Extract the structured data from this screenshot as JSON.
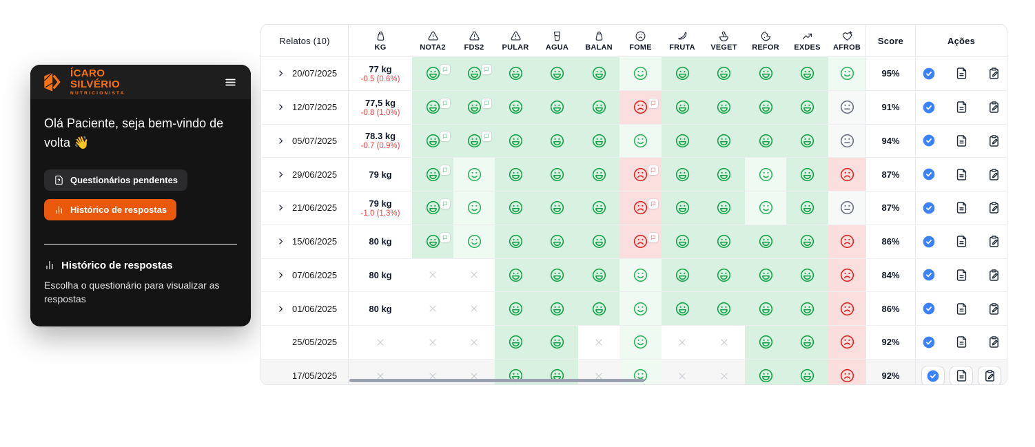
{
  "sidebar": {
    "logo": {
      "line1": "ÍCARO",
      "line2": "SILVÉRIO",
      "line3": "NUTRICIONISTA"
    },
    "greeting": "Olá Paciente, seja bem-vindo de volta 👋",
    "buttons": [
      {
        "label": "Questionários pendentes",
        "icon": "file-question",
        "style": "dark"
      },
      {
        "label": "Histórico de respostas",
        "icon": "bar-chart",
        "style": "orange"
      }
    ],
    "section": {
      "title": "Histórico de respostas",
      "icon": "bar-chart",
      "description": "Escolha o questionário para visualizar as respostas"
    }
  },
  "colors": {
    "orange": "#ea580c",
    "logo_orange": "#f97316",
    "blue": "#3b82f6",
    "green_strong": "#16a34a",
    "green_light": "#2fb45f",
    "red": "#dc2626",
    "gray_neutral": "#6b7280",
    "gray_x": "#c9cdd3",
    "delta_red": "#ef4444",
    "bg_grin": "#d9f1e1",
    "bg_smile": "#effaf3",
    "bg_frown": "#fbdfdf",
    "bg_neutral": "#f7f8f8"
  },
  "table": {
    "first_column_header": "Relatos (10)",
    "score_header": "Score",
    "actions_header": "Ações",
    "columns": [
      {
        "key": "kg",
        "label": "KG",
        "icon": "weight"
      },
      {
        "key": "nota2",
        "label": "NOTA2",
        "icon": "alert-triangle"
      },
      {
        "key": "fds2",
        "label": "FDS2",
        "icon": "alert-triangle"
      },
      {
        "key": "pular",
        "label": "PULAR",
        "icon": "alert-triangle"
      },
      {
        "key": "agua",
        "label": "AGUA",
        "icon": "glass-water"
      },
      {
        "key": "balan",
        "label": "BALAN",
        "icon": "weight"
      },
      {
        "key": "fome",
        "label": "FOME",
        "icon": "frown-face"
      },
      {
        "key": "fruta",
        "label": "FRUTA",
        "icon": "banana"
      },
      {
        "key": "veget",
        "label": "VEGET",
        "icon": "salad"
      },
      {
        "key": "refor",
        "label": "REFOR",
        "icon": "cookie"
      },
      {
        "key": "exdes",
        "label": "EXDES",
        "icon": "trending-up"
      },
      {
        "key": "afrob",
        "label": "AFROB",
        "icon": "heart-plus"
      }
    ],
    "actions": [
      {
        "key": "confirm",
        "icon": "check-circle"
      },
      {
        "key": "report",
        "icon": "file-text"
      },
      {
        "key": "edit",
        "icon": "clipboard-pen"
      }
    ],
    "rows": [
      {
        "date": "20/07/2025",
        "expandable": true,
        "weight": "77 kg",
        "weight_delta": "-0.5 (0.6%)",
        "cells": [
          "grin-note",
          "grin-note",
          "grin",
          "grin",
          "grin",
          "smile",
          "grin",
          "grin",
          "grin",
          "grin",
          "smile"
        ],
        "score": "95%",
        "highlighted": false
      },
      {
        "date": "12/07/2025",
        "expandable": true,
        "weight": "77,5 kg",
        "weight_delta": "-0.8 (1.0%)",
        "cells": [
          "grin-note",
          "grin-note",
          "grin",
          "grin",
          "grin",
          "frown-note",
          "grin",
          "grin",
          "grin",
          "grin",
          "neutral"
        ],
        "score": "91%",
        "highlighted": false
      },
      {
        "date": "05/07/2025",
        "expandable": true,
        "weight": "78.3 kg",
        "weight_delta": "-0.7 (0.9%)",
        "cells": [
          "grin-note",
          "grin-note",
          "grin",
          "grin",
          "grin",
          "smile",
          "grin",
          "grin",
          "grin",
          "grin",
          "neutral"
        ],
        "score": "94%",
        "highlighted": false
      },
      {
        "date": "29/06/2025",
        "expandable": true,
        "weight": "79 kg",
        "weight_delta": "",
        "cells": [
          "grin-note",
          "smile",
          "grin",
          "grin",
          "grin",
          "frown-note",
          "grin",
          "grin",
          "smile",
          "grin",
          "frown"
        ],
        "score": "87%",
        "highlighted": false
      },
      {
        "date": "21/06/2025",
        "expandable": true,
        "weight": "79 kg",
        "weight_delta": "-1.0 (1.3%)",
        "cells": [
          "grin-note",
          "smile",
          "grin",
          "grin",
          "grin",
          "frown-note",
          "grin",
          "grin",
          "smile",
          "grin",
          "neutral"
        ],
        "score": "87%",
        "highlighted": false
      },
      {
        "date": "15/06/2025",
        "expandable": true,
        "weight": "80 kg",
        "weight_delta": "",
        "cells": [
          "grin-note",
          "smile",
          "grin",
          "grin",
          "grin",
          "frown-note",
          "grin",
          "grin",
          "grin",
          "grin",
          "frown"
        ],
        "score": "86%",
        "highlighted": false
      },
      {
        "date": "07/06/2025",
        "expandable": true,
        "weight": "80 kg",
        "weight_delta": "",
        "cells": [
          "none",
          "none",
          "grin",
          "grin",
          "grin",
          "smile",
          "grin",
          "grin",
          "grin",
          "grin",
          "frown"
        ],
        "score": "84%",
        "highlighted": false
      },
      {
        "date": "01/06/2025",
        "expandable": true,
        "weight": "80 kg",
        "weight_delta": "",
        "cells": [
          "none",
          "none",
          "grin",
          "grin",
          "grin",
          "smile",
          "grin",
          "grin",
          "grin",
          "grin",
          "frown"
        ],
        "score": "86%",
        "highlighted": false
      },
      {
        "date": "25/05/2025",
        "expandable": false,
        "weight": "",
        "weight_delta": "",
        "cells": [
          "none",
          "none",
          "grin",
          "grin",
          "none",
          "smile",
          "none",
          "none",
          "grin",
          "grin",
          "frown"
        ],
        "score": "92%",
        "highlighted": false
      },
      {
        "date": "17/05/2025",
        "expandable": false,
        "weight": "",
        "weight_delta": "",
        "cells": [
          "none",
          "none",
          "grin",
          "grin",
          "none",
          "smile",
          "none",
          "none",
          "grin",
          "grin",
          "frown"
        ],
        "score": "92%",
        "highlighted": true
      }
    ]
  }
}
